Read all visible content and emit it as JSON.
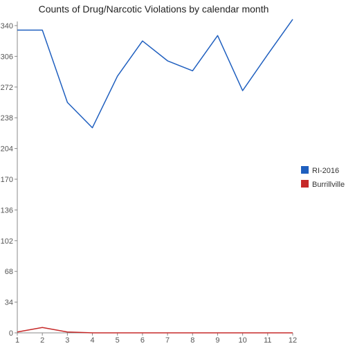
{
  "chart_data": {
    "type": "line",
    "title": "Counts of Drug/Narcotic Violations by calendar month",
    "xlabel": "",
    "ylabel": "",
    "x": [
      1,
      2,
      3,
      4,
      5,
      6,
      7,
      8,
      9,
      10,
      11,
      12
    ],
    "ylim": [
      0,
      340
    ],
    "yticks": [
      0,
      34,
      68,
      102,
      136,
      170,
      204,
      238,
      272,
      306,
      340
    ],
    "grid": false,
    "legend_position": "right",
    "series": [
      {
        "name": "RI-2016",
        "color": "#1f5fbf",
        "values": [
          335,
          335,
          255,
          227,
          284,
          323,
          301,
          290,
          329,
          268,
          308,
          347
        ]
      },
      {
        "name": "Burrillville",
        "color": "#c62828",
        "values": [
          1,
          6,
          1,
          0,
          0,
          0,
          0,
          0,
          0,
          0,
          0,
          0
        ]
      }
    ]
  }
}
